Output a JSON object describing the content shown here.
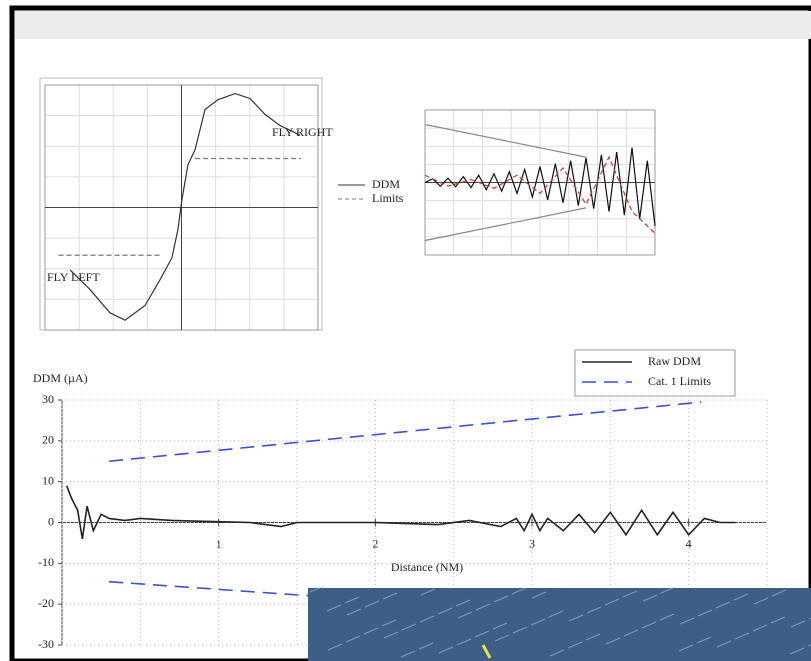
{
  "chart_data": [
    {
      "type": "line",
      "xlim": [
        -80,
        80
      ],
      "ylim": [
        -1,
        1
      ],
      "annotations": [
        "FLY RIGHT",
        "FLY LEFT"
      ],
      "series": [
        {
          "name": "DDM",
          "color": "#333333",
          "x": [
            -65.3,
            -53.6,
            -41.9,
            -33.1,
            -21.4,
            -12.6,
            -5.6,
            -2.1,
            0.2,
            3.8,
            7.9,
            13.8,
            21.4,
            31.4,
            40.1,
            48.9,
            57.7,
            69.5
          ],
          "values": [
            -0.51,
            -0.67,
            -0.86,
            -0.92,
            -0.8,
            -0.59,
            -0.41,
            -0.18,
            0.06,
            0.35,
            0.47,
            0.8,
            0.88,
            0.93,
            0.89,
            0.76,
            0.67,
            0.59
          ]
        },
        {
          "name": "Limits",
          "color": "#777777",
          "dash": true,
          "x": [
            8,
            70,
            null,
            -72,
            -12
          ],
          "values": [
            0.4,
            0.4,
            null,
            -0.39,
            -0.39
          ]
        }
      ]
    },
    {
      "type": "line",
      "xlim": [
        0,
        30
      ],
      "ylim": [
        -1,
        1
      ],
      "series": [
        {
          "color": "#111111",
          "x": [
            0,
            1,
            2,
            3,
            4,
            5,
            6,
            7,
            8,
            9,
            10,
            11,
            12,
            13,
            14,
            15,
            16,
            17,
            18,
            19,
            20,
            21,
            22,
            23,
            24,
            25,
            26,
            27,
            28,
            29,
            30
          ],
          "values": [
            0,
            0.05,
            -0.05,
            0.06,
            -0.06,
            0.08,
            -0.07,
            0.1,
            -0.1,
            0.12,
            -0.12,
            0.15,
            -0.15,
            0.18,
            -0.2,
            0.22,
            -0.24,
            0.26,
            -0.28,
            0.3,
            -0.32,
            0.34,
            -0.36,
            0.38,
            -0.4,
            0.42,
            -0.45,
            0.48,
            -0.5,
            0.3,
            -0.6
          ]
        },
        {
          "color": "#c0392b",
          "dash": true,
          "x": [
            0,
            3,
            6,
            9,
            12,
            15,
            18,
            21,
            24,
            27,
            30
          ],
          "values": [
            0.1,
            -0.05,
            0.04,
            -0.08,
            0.1,
            -0.15,
            0.2,
            -0.3,
            0.35,
            -0.4,
            -0.7
          ]
        },
        {
          "color": "#888888",
          "x": [
            0,
            21,
            null,
            0,
            21
          ],
          "values": [
            0.8,
            0.35,
            null,
            -0.8,
            -0.35
          ]
        }
      ]
    },
    {
      "type": "line",
      "xlim": [
        0,
        4.5
      ],
      "ylim": [
        -30,
        30
      ],
      "yticks": [
        -30,
        -20,
        -10,
        0,
        10,
        20,
        30
      ],
      "xticks": [
        1,
        2,
        3,
        4
      ],
      "y_label": "DDM (µA)",
      "x_label": "Distance (NM)",
      "grid": true,
      "series": [
        {
          "name": "Raw DDM",
          "color": "#222222",
          "x": [
            0.03,
            0.06,
            0.1,
            0.13,
            0.16,
            0.2,
            0.25,
            0.3,
            0.4,
            0.5,
            0.7,
            0.9,
            1.0,
            1.2,
            1.4,
            1.5,
            1.6,
            2.0,
            2.4,
            2.6,
            2.8,
            2.9,
            2.95,
            3.0,
            3.05,
            3.1,
            3.2,
            3.3,
            3.4,
            3.5,
            3.6,
            3.7,
            3.8,
            3.9,
            4.0,
            4.1,
            4.2,
            4.3
          ],
          "values": [
            9,
            6,
            3,
            -4,
            4,
            -2,
            2,
            1,
            0.5,
            1,
            0.5,
            0.3,
            0.2,
            0,
            -1,
            0,
            0,
            0,
            -0.5,
            0.5,
            -1,
            1,
            -2,
            2,
            -2,
            1,
            -2,
            2,
            -2.5,
            2.5,
            -3,
            3,
            -3,
            2.5,
            -3,
            1,
            0,
            0
          ]
        },
        {
          "name": "Cat. 1 Limits",
          "color": "#3b4fd8",
          "dash": true,
          "x": [
            0.3,
            4.08,
            null,
            0.3,
            1.6
          ],
          "values": [
            15,
            29.5,
            null,
            -14.5,
            -18
          ]
        }
      ]
    }
  ]
}
